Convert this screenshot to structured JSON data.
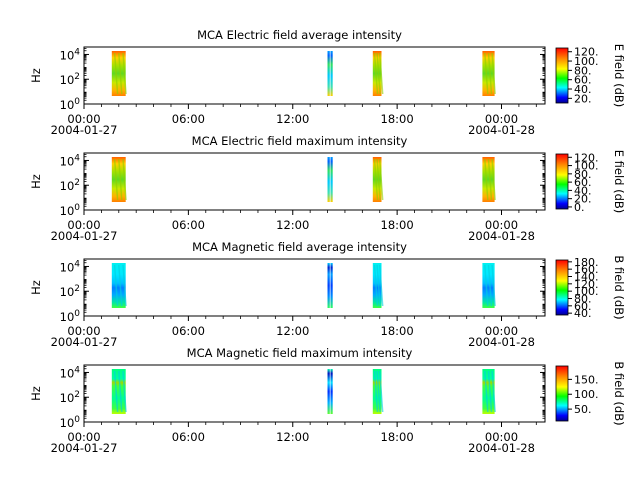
{
  "chart_data": [
    {
      "type": "heatmap",
      "title": "MCA  Electric field average intensity",
      "ylabel": "Hz",
      "yscale": "log",
      "ylim": [
        1,
        40000
      ],
      "yticks": [
        {
          "value": 1,
          "base": "10",
          "exp": "0"
        },
        {
          "value": 100,
          "base": "10",
          "exp": "2"
        },
        {
          "value": 10000,
          "base": "10",
          "exp": "4"
        }
      ],
      "xticks": [
        "00:00",
        "06:00",
        "12:00",
        "18:00",
        "00:00"
      ],
      "xdates": [
        "2004-01-27",
        "2004-01-28"
      ],
      "colorbar": {
        "label": "E field (dB)",
        "ticks": [
          "20.",
          "40.",
          "60.",
          "80.",
          "100.",
          "120."
        ],
        "range": [
          10,
          128
        ]
      },
      "blocks": [
        {
          "start_hour": 1.6,
          "end_hour": 2.4
        },
        {
          "start_hour": 14.0,
          "end_hour": 14.3
        },
        {
          "start_hour": 16.6,
          "end_hour": 17.1
        },
        {
          "start_hour": 22.9,
          "end_hour": 23.6
        }
      ],
      "palette": "warm"
    },
    {
      "type": "heatmap",
      "title": "MCA  Electric field maximum intensity",
      "ylabel": "Hz",
      "yscale": "log",
      "ylim": [
        1,
        40000
      ],
      "yticks": [
        {
          "value": 1,
          "base": "10",
          "exp": "0"
        },
        {
          "value": 100,
          "base": "10",
          "exp": "2"
        },
        {
          "value": 10000,
          "base": "10",
          "exp": "4"
        }
      ],
      "xticks": [
        "00:00",
        "06:00",
        "12:00",
        "18:00",
        "00:00"
      ],
      "xdates": [
        "2004-01-27",
        "2004-01-28"
      ],
      "colorbar": {
        "label": "E field (dB)",
        "ticks": [
          "0.",
          "20.",
          "40.",
          "60.",
          "80.",
          "100.",
          "120."
        ],
        "range": [
          -5,
          128
        ]
      },
      "blocks": [
        {
          "start_hour": 1.6,
          "end_hour": 2.4
        },
        {
          "start_hour": 14.0,
          "end_hour": 14.3
        },
        {
          "start_hour": 16.6,
          "end_hour": 17.1
        },
        {
          "start_hour": 22.9,
          "end_hour": 23.6
        }
      ],
      "palette": "warm"
    },
    {
      "type": "heatmap",
      "title": "MCA  Magnetic field average intensity",
      "ylabel": "Hz",
      "yscale": "log",
      "ylim": [
        1,
        40000
      ],
      "yticks": [
        {
          "value": 1,
          "base": "10",
          "exp": "0"
        },
        {
          "value": 100,
          "base": "10",
          "exp": "2"
        },
        {
          "value": 10000,
          "base": "10",
          "exp": "4"
        }
      ],
      "xticks": [
        "00:00",
        "06:00",
        "12:00",
        "18:00",
        "00:00"
      ],
      "xdates": [
        "2004-01-27",
        "2004-01-28"
      ],
      "colorbar": {
        "label": "B field (dB)",
        "ticks": [
          "40.",
          "60.",
          "80.",
          "100.",
          "120.",
          "140.",
          "160.",
          "180."
        ],
        "range": [
          35,
          185
        ]
      },
      "blocks": [
        {
          "start_hour": 1.6,
          "end_hour": 2.4
        },
        {
          "start_hour": 14.0,
          "end_hour": 14.3
        },
        {
          "start_hour": 16.6,
          "end_hour": 17.1
        },
        {
          "start_hour": 22.9,
          "end_hour": 23.6
        }
      ],
      "palette": "cool"
    },
    {
      "type": "heatmap",
      "title": "MCA  Magnetic field maximum intensity",
      "ylabel": "Hz",
      "yscale": "log",
      "ylim": [
        1,
        40000
      ],
      "yticks": [
        {
          "value": 1,
          "base": "10",
          "exp": "0"
        },
        {
          "value": 100,
          "base": "10",
          "exp": "2"
        },
        {
          "value": 10000,
          "base": "10",
          "exp": "4"
        }
      ],
      "xticks": [
        "00:00",
        "06:00",
        "12:00",
        "18:00",
        "00:00"
      ],
      "xdates": [
        "2004-01-27",
        "2004-01-28"
      ],
      "colorbar": {
        "label": "B field (dB)",
        "ticks": [
          "50.",
          "100.",
          "150."
        ],
        "range": [
          10,
          195
        ]
      },
      "blocks": [
        {
          "start_hour": 1.6,
          "end_hour": 2.4
        },
        {
          "start_hour": 14.0,
          "end_hour": 14.3
        },
        {
          "start_hour": 16.6,
          "end_hour": 17.1
        },
        {
          "start_hour": 22.9,
          "end_hour": 23.6
        }
      ],
      "palette": "cool-max"
    }
  ]
}
